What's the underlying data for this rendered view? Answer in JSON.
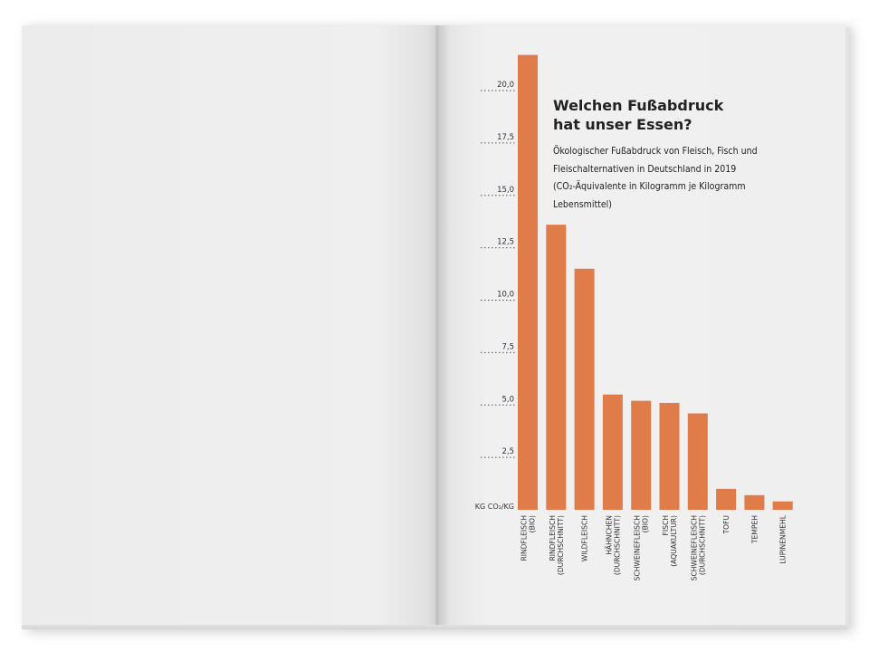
{
  "chart_data": {
    "type": "bar",
    "title_line1": "Welchen Fußabdruck",
    "title_line2": "hat unser Essen?",
    "subtitle": "Ökologischer Fußabdruck von Fleisch, Fisch und Fleischalternativen in Deutschland in 2019 (CO₂-Äquivalente in Kilogramm je Kilogramm Lebensmittel)",
    "ylabel": "KG CO₂/KG",
    "ylim": [
      0,
      21.5
    ],
    "yticks": [
      "2,5",
      "5,0",
      "7,5",
      "10,0",
      "12,5",
      "15,0",
      "17,5",
      "20,0"
    ],
    "ytick_values": [
      2.5,
      5.0,
      7.5,
      10.0,
      12.5,
      15.0,
      17.5,
      20.0
    ],
    "grid": "dotted horizontal lines at ticks",
    "categories": [
      [
        "RINDFLEISCH",
        "(BIO)"
      ],
      [
        "RINDFLEISCH",
        "(DURCHSCHNITT)"
      ],
      [
        "WILDFLEISCH"
      ],
      [
        "HÄHNCHEN",
        "(DURCHSCHNITT)"
      ],
      [
        "SCHWEINEFLEISCH",
        "(BIO)"
      ],
      [
        "FISCH",
        "(AQUAKULTUR)"
      ],
      [
        "SCHWEINEFLEISCH",
        "(DURCHSCHNITT)"
      ],
      [
        "TOFU"
      ],
      [
        "TEMPEH"
      ],
      [
        "LUPINENMEHL"
      ]
    ],
    "values": [
      21.7,
      13.6,
      11.5,
      5.5,
      5.2,
      5.1,
      4.6,
      1.0,
      0.7,
      0.4
    ],
    "bar_color": "#e07b4a"
  }
}
